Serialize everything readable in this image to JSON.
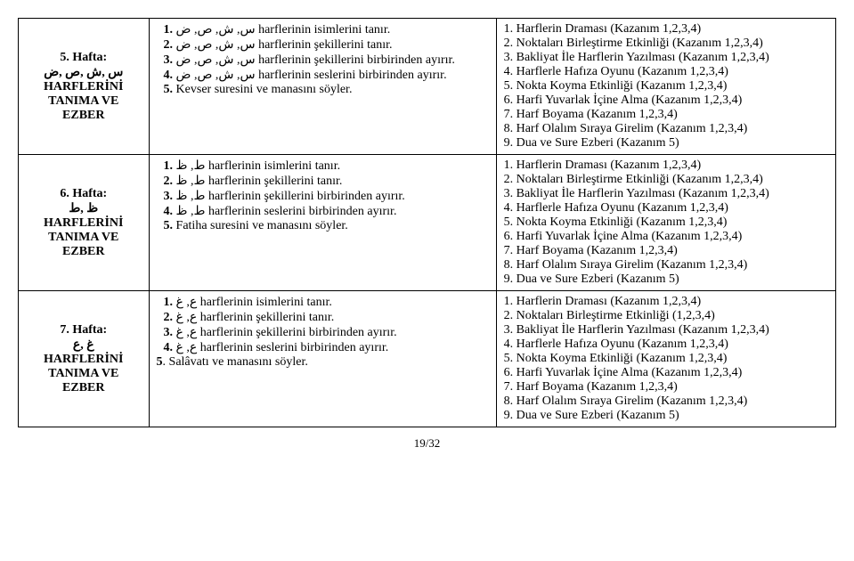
{
  "rows": [
    {
      "week_title": "5. Hafta:",
      "week_letters": "س ,ش ,ص ,ض",
      "week_sub1": "HARFLERİNİ",
      "week_sub2": "TANIMA VE",
      "week_sub3": "EZBER",
      "obj1": "س, ش, ص, ض harflerinin isimlerini tanır.",
      "obj2": "س, ش, ص, ض harflerinin şekillerini tanır.",
      "obj3": "س, ش, ص, ض harflerinin şekillerini birbirinden ayırır.",
      "obj4": "س, ش, ص, ض harflerinin seslerini birbirinden ayırır.",
      "obj5": "Kevser suresini ve manasını söyler.",
      "act1": "1. Harflerin Draması (Kazanım 1,2,3,4)",
      "act2": "2. Noktaları Birleştirme Etkinliği (Kazanım 1,2,3,4)",
      "act3": "3. Bakliyat İle Harflerin Yazılması (Kazanım 1,2,3,4)",
      "act4": "4. Harflerle Hafıza Oyunu (Kazanım 1,2,3,4)",
      "act5": "5. Nokta Koyma Etkinliği (Kazanım 1,2,3,4)",
      "act6": "6. Harfi Yuvarlak İçine Alma (Kazanım 1,2,3,4)",
      "act7": "7. Harf Boyama (Kazanım 1,2,3,4)",
      "act8": "8. Harf Olalım Sıraya Girelim (Kazanım 1,2,3,4)",
      "act9": "9. Dua ve Sure Ezberi (Kazanım 5)"
    },
    {
      "week_title": "6. Hafta:",
      "week_letters": "ظ ,ط",
      "week_sub1": "HARFLERİNİ",
      "week_sub2": "TANIMA VE",
      "week_sub3": "EZBER",
      "obj1": "ط, ظ harflerinin isimlerini tanır.",
      "obj2": "ط, ظ harflerinin şekillerini tanır.",
      "obj3": "ط, ظ harflerinin şekillerini birbirinden ayırır.",
      "obj4": "ط, ظ harflerinin seslerini birbirinden ayırır.",
      "obj5": "Fatiha suresini ve manasını söyler.",
      "act1": "1. Harflerin Draması (Kazanım 1,2,3,4)",
      "act2": "2. Noktaları Birleştirme Etkinliği (Kazanım 1,2,3,4)",
      "act3": "3. Bakliyat İle Harflerin Yazılması (Kazanım 1,2,3,4)",
      "act4": "4. Harflerle Hafıza Oyunu (Kazanım 1,2,3,4)",
      "act5": "5. Nokta Koyma Etkinliği (Kazanım 1,2,3,4)",
      "act6": "6. Harfi Yuvarlak İçine Alma (Kazanım 1,2,3,4)",
      "act7": "7. Harf Boyama (Kazanım 1,2,3,4)",
      "act8": "8. Harf Olalım Sıraya Girelim (Kazanım 1,2,3,4)",
      "act9": "9. Dua ve Sure Ezberi (Kazanım 5)"
    },
    {
      "week_title": "7. Hafta:",
      "week_letters": "غ ,ع",
      "week_sub1": "HARFLERİNİ",
      "week_sub2": "TANIMA VE",
      "week_sub3": "EZBER",
      "obj1": "ع, غ harflerinin isimlerini tanır.",
      "obj2": "ع, غ harflerinin şekillerini tanır.",
      "obj3": "ع, غ harflerinin şekillerini birbirinden ayırır.",
      "obj4": "ع, غ harflerinin seslerini birbirinden ayırır.",
      "obj5_prefix": "5",
      "obj5_rest": ". Salâvatı ve manasını söyler.",
      "act1": "1. Harflerin Draması (Kazanım 1,2,3,4)",
      "act2": "2. Noktaları Birleştirme Etkinliği (1,2,3,4)",
      "act3": "3. Bakliyat İle Harflerin Yazılması (Kazanım 1,2,3,4)",
      "act4": "4. Harflerle Hafıza Oyunu (Kazanım 1,2,3,4)",
      "act5": "5. Nokta Koyma Etkinliği (Kazanım 1,2,3,4)",
      "act6": "6. Harfi Yuvarlak İçine Alma (Kazanım 1,2,3,4)",
      "act7": "7. Harf Boyama (Kazanım 1,2,3,4)",
      "act8": "8. Harf Olalım Sıraya Girelim (Kazanım 1,2,3,4)",
      "act9": "9. Dua ve Sure Ezberi (Kazanım 5)"
    }
  ],
  "page_number": "19/32"
}
